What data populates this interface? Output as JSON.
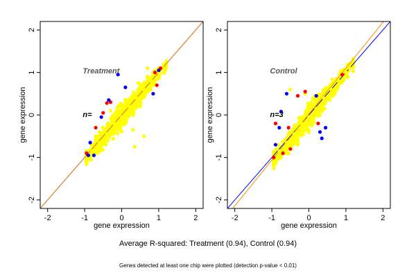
{
  "figure": {
    "subtitle": "Average R-squared: Treatment (0.94), Control (0.94)",
    "footnote": "Genes detected at least one chip were plotted (detection p-value < 0.01)"
  },
  "colors": {
    "background": "#ffffff",
    "points_bulk": "#ffff00",
    "points_red": "#ff0000",
    "points_blue": "#0000ff",
    "line_orange": "#ff8c00",
    "line_blue": "#0000ff"
  },
  "chart_data": [
    {
      "type": "scatter",
      "title": "Treatment",
      "annotation": "n=",
      "xlabel": "gene expression",
      "ylabel": "gene expression",
      "xlim": [
        -2.2,
        2.2
      ],
      "ylim": [
        -2.2,
        2.2
      ],
      "xticks": [
        -2,
        -1,
        0,
        1,
        2
      ],
      "yticks": [
        -2,
        -1,
        0,
        1,
        2
      ],
      "grid": false,
      "reference_lines": [
        {
          "color": "blue",
          "slope": 1.0,
          "intercept": 0.0
        },
        {
          "color": "orange",
          "slope": 1.0,
          "intercept": 0.0
        }
      ],
      "cloud": {
        "x_range": [
          -0.95,
          1.2
        ],
        "y_range": [
          -1.0,
          1.2
        ]
      },
      "series": [
        {
          "color": "yellow",
          "x": [
            -0.8,
            -0.6,
            -0.4,
            -0.2,
            0.0,
            0.2,
            0.4,
            0.6,
            0.8,
            1.0,
            1.1,
            -0.3,
            0.1,
            0.5,
            0.7,
            0.3,
            0.35,
            0.6
          ],
          "y": [
            -0.85,
            -0.65,
            -0.45,
            -0.2,
            -0.05,
            0.2,
            0.4,
            0.6,
            0.8,
            1.0,
            1.1,
            0.1,
            0.3,
            0.2,
            1.1,
            -0.35,
            -0.75,
            -0.5
          ]
        },
        {
          "color": "red",
          "x": [
            -0.95,
            -0.7,
            -0.5,
            -0.3,
            0.9,
            1.05,
            -0.4,
            0.95
          ],
          "y": [
            -0.9,
            -0.3,
            0.05,
            0.3,
            1.0,
            1.1,
            0.28,
            0.7
          ]
        },
        {
          "color": "blue",
          "x": [
            -0.9,
            -0.75,
            -0.55,
            -0.35,
            -0.1,
            0.1,
            0.85,
            1.0,
            -0.85
          ],
          "y": [
            -0.95,
            -0.95,
            -0.05,
            0.35,
            0.95,
            0.65,
            0.5,
            1.05,
            -0.65
          ]
        }
      ]
    },
    {
      "type": "scatter",
      "title": "Control",
      "annotation": "n=3",
      "xlabel": "gene expression",
      "ylabel": "gene expression",
      "xlim": [
        -2.2,
        2.2
      ],
      "ylim": [
        -2.2,
        2.2
      ],
      "xticks": [
        -2,
        -1,
        0,
        1,
        2
      ],
      "yticks": [
        -2,
        -1,
        0,
        1,
        2
      ],
      "grid": false,
      "reference_lines": [
        {
          "color": "blue",
          "slope": 1.0,
          "intercept": 0.0
        },
        {
          "color": "orange",
          "slope": 1.08,
          "intercept": 0.02
        }
      ],
      "cloud": {
        "x_range": [
          -0.95,
          1.2
        ],
        "y_range": [
          -1.05,
          1.2
        ]
      },
      "series": [
        {
          "color": "yellow",
          "x": [
            -0.8,
            -0.6,
            -0.4,
            -0.2,
            0.0,
            0.2,
            0.4,
            0.6,
            0.8,
            1.0,
            1.1,
            -0.5,
            -0.1,
            0.3,
            -0.3
          ],
          "y": [
            -0.85,
            -0.65,
            -0.45,
            -0.2,
            -0.05,
            0.15,
            0.4,
            0.6,
            0.8,
            1.0,
            1.1,
            0.6,
            0.5,
            0.0,
            -0.7
          ]
        },
        {
          "color": "red",
          "x": [
            -0.95,
            -0.9,
            -0.7,
            -0.5,
            -0.3,
            -0.1,
            0.25,
            0.9,
            -0.55
          ],
          "y": [
            -1.0,
            -0.2,
            -0.9,
            -0.8,
            0.45,
            0.55,
            -0.2,
            0.95,
            -0.3
          ]
        },
        {
          "color": "blue",
          "x": [
            -0.9,
            -0.8,
            -0.6,
            0.2,
            0.3,
            0.45,
            -0.75,
            0.35
          ],
          "y": [
            -0.7,
            -0.3,
            0.5,
            0.45,
            -0.4,
            -0.3,
            0.08,
            -0.55
          ]
        }
      ]
    }
  ]
}
